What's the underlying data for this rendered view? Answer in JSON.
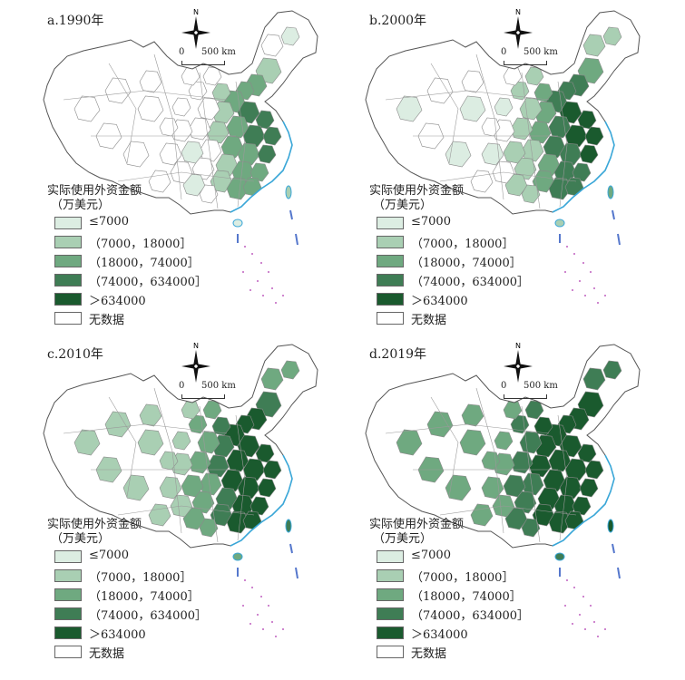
{
  "panels": [
    {
      "title": "a.1990年",
      "level": 1
    },
    {
      "title": "b.2000年",
      "level": 2
    },
    {
      "title": "c.2010年",
      "level": 3
    },
    {
      "title": "d.2019年",
      "level": 4
    }
  ],
  "compass": {
    "north": "N"
  },
  "scale": {
    "zero": "0",
    "distance": "500 km"
  },
  "legend": {
    "title": "实际使用外资金额",
    "unit": "（万美元）",
    "classes": [
      {
        "label": "≤7000",
        "color": "#dcede2"
      },
      {
        "label": "（7000，18000］",
        "color": "#a9cfb3"
      },
      {
        "label": "（18000，74000］",
        "color": "#6fa980"
      },
      {
        "label": "（74000，634000］",
        "color": "#3f7d55"
      },
      {
        "label": "＞634000",
        "color": "#1a5a2e"
      },
      {
        "label": "无数据",
        "color": "#ffffff"
      }
    ]
  },
  "colors": {
    "outline": "#666666",
    "coast": "#3aa7d8",
    "islands": "#c060c0"
  }
}
